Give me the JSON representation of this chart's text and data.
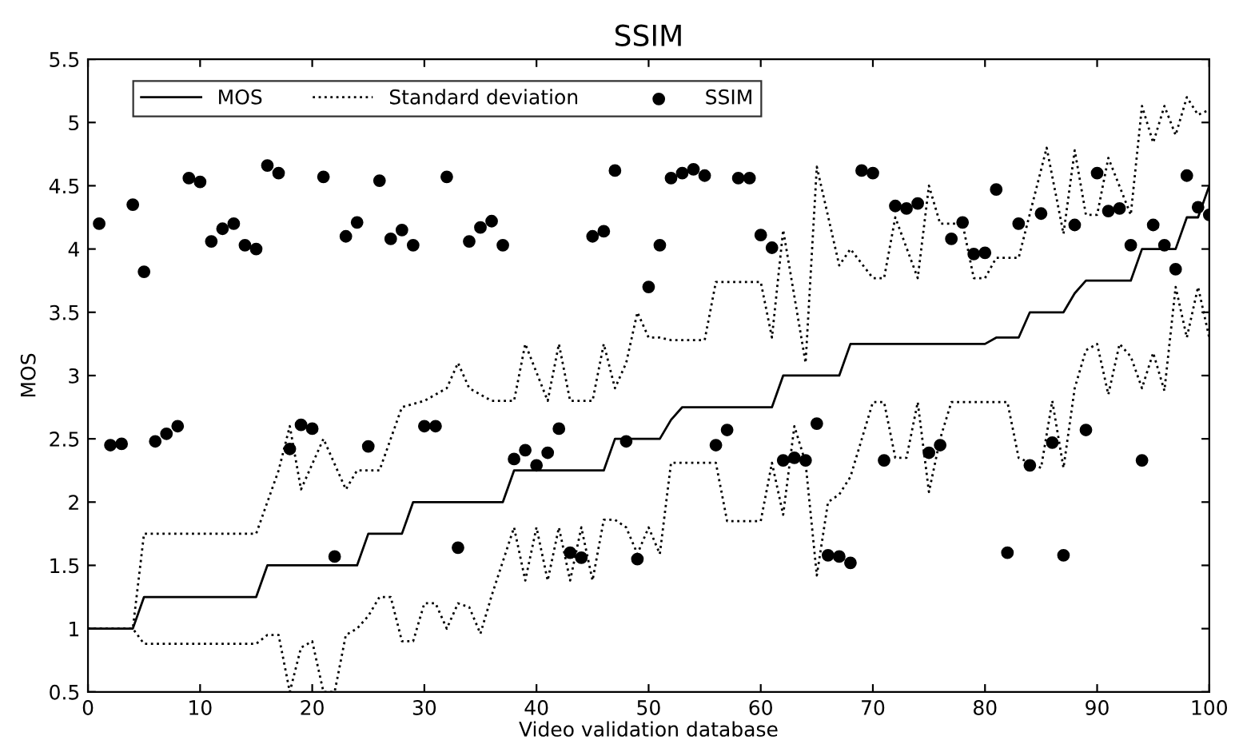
{
  "chart_data": {
    "type": "line",
    "title": "SSIM",
    "xlabel": "Video validation database",
    "ylabel": "MOS",
    "xlim": [
      0,
      100
    ],
    "xticks": [
      0,
      10,
      20,
      30,
      40,
      50,
      60,
      70,
      80,
      90,
      100
    ],
    "ylim": [
      0.5,
      5.5
    ],
    "yticks": [
      0.5,
      1,
      1.5,
      2,
      2.5,
      3,
      3.5,
      4,
      4.5,
      5,
      5.5
    ],
    "grid": false,
    "legend": "top left",
    "series": [
      {
        "name": "MOS",
        "color": "#000000",
        "line_style": "solid",
        "marker": "none",
        "x": [
          0,
          4,
          5,
          15,
          16,
          24,
          25,
          28,
          29,
          37,
          38,
          46,
          47,
          50,
          51,
          52,
          53,
          61,
          62,
          67,
          68,
          80,
          81,
          82,
          83,
          84,
          87,
          88,
          89,
          93,
          94,
          97,
          98,
          99,
          100
        ],
        "values": [
          1,
          1,
          1.25,
          1.25,
          1.5,
          1.5,
          1.75,
          1.75,
          2,
          2,
          2.25,
          2.25,
          2.5,
          2.5,
          2.5,
          2.65,
          2.75,
          2.75,
          3,
          3,
          3.25,
          3.25,
          3.3,
          3.3,
          3.3,
          3.5,
          3.5,
          3.65,
          3.75,
          3.75,
          4,
          4,
          4.25,
          4.25,
          4.5
        ]
      },
      {
        "name": "Standard deviation",
        "color": "#000000",
        "line_style": "dotted",
        "marker": "none",
        "x": [
          0,
          4,
          5,
          15,
          16,
          17,
          18,
          19,
          21,
          23,
          24,
          26,
          27,
          28,
          30,
          32,
          33,
          34,
          36,
          38,
          39,
          41,
          42,
          43,
          44,
          45,
          46,
          47,
          48,
          49,
          50,
          51,
          52,
          55,
          56,
          60,
          61,
          62,
          64,
          65,
          67,
          68,
          70,
          71,
          72,
          74,
          75,
          76,
          78,
          79,
          80,
          81,
          83,
          85.5,
          87,
          88,
          89,
          90,
          91,
          93,
          94,
          95,
          96,
          97,
          98,
          99,
          100
        ],
        "values": [
          1,
          1,
          1.75,
          1.75,
          2,
          2.25,
          2.6,
          2.1,
          2.5,
          2.1,
          2.25,
          2.25,
          2.5,
          2.75,
          2.8,
          2.9,
          3.1,
          2.9,
          2.8,
          2.8,
          3.25,
          2.8,
          3.25,
          2.8,
          2.8,
          2.8,
          3.25,
          2.9,
          3.1,
          3.5,
          3.3,
          3.3,
          3.28,
          3.28,
          3.74,
          3.74,
          3.3,
          4.15,
          3.1,
          4.65,
          3.87,
          4,
          3.77,
          3.77,
          4.25,
          3.77,
          4.5,
          4.2,
          4.2,
          3.77,
          3.77,
          3.93,
          3.93,
          4.8,
          4.12,
          4.78,
          4.27,
          4.27,
          4.72,
          4.27,
          5.13,
          4.84,
          5.13,
          4.9,
          5.2,
          5.06,
          5.1
        ]
      },
      {
        "color": "#000000",
        "line_style": "dotted",
        "marker": "none",
        "x": [
          0,
          4,
          5,
          15,
          16,
          17,
          18,
          19,
          20,
          21,
          22,
          23,
          24,
          25,
          26,
          27,
          28,
          29,
          30,
          31,
          32,
          33,
          34,
          35,
          36,
          38,
          39,
          40,
          41,
          42,
          43,
          44,
          45,
          46,
          47,
          48,
          49,
          50,
          51,
          52,
          56,
          57,
          60,
          61,
          62,
          63,
          64,
          65,
          66,
          67,
          68,
          70,
          71,
          72,
          73,
          74,
          75,
          76,
          77,
          82,
          83,
          85,
          86,
          87,
          88,
          89,
          90,
          91,
          92,
          93,
          94,
          95,
          96,
          97,
          98,
          99,
          100
        ],
        "values": [
          1,
          1,
          0.88,
          0.88,
          0.95,
          0.95,
          0.5,
          0.85,
          0.9,
          0.5,
          0.5,
          0.95,
          1,
          1.1,
          1.25,
          1.25,
          0.9,
          0.9,
          1.2,
          1.2,
          1,
          1.2,
          1.17,
          0.96,
          1.26,
          1.8,
          1.38,
          1.8,
          1.38,
          1.8,
          1.38,
          1.8,
          1.38,
          1.86,
          1.86,
          1.8,
          1.59,
          1.8,
          1.59,
          2.31,
          2.31,
          1.85,
          1.85,
          2.31,
          1.9,
          2.6,
          2.31,
          1.42,
          2.0,
          2.06,
          2.2,
          2.79,
          2.79,
          2.35,
          2.35,
          2.79,
          2.08,
          2.5,
          2.79,
          2.79,
          2.35,
          2.27,
          2.8,
          2.27,
          2.9,
          3.2,
          3.25,
          2.85,
          3.25,
          3.15,
          2.9,
          3.18,
          2.88,
          3.7,
          3.3,
          3.7,
          3.3
        ]
      },
      {
        "name": "SSIM",
        "type": "scatter",
        "color": "#000000",
        "marker": "circle",
        "x": [
          1,
          2,
          3,
          4,
          5,
          6,
          7,
          8,
          9,
          10,
          11,
          12,
          13,
          14,
          15,
          16,
          17,
          18,
          19,
          20,
          21,
          22,
          23,
          24,
          25,
          26,
          27,
          28,
          29,
          30,
          31,
          32,
          33,
          34,
          35,
          36,
          37,
          38,
          39,
          40,
          41,
          42,
          43,
          44,
          45,
          46,
          47,
          48,
          49,
          50,
          51,
          52,
          53,
          54,
          55,
          56,
          57,
          58,
          59,
          60,
          61,
          62,
          63,
          64,
          65,
          66,
          67,
          68,
          69,
          70,
          71,
          72,
          73,
          74,
          75,
          76,
          77,
          78,
          79,
          80,
          81,
          82,
          83,
          84,
          85,
          86,
          87,
          88,
          89,
          90,
          91,
          92,
          93,
          94,
          95,
          96,
          97,
          98,
          99,
          100
        ],
        "values": [
          4.2,
          2.45,
          2.46,
          4.35,
          3.82,
          2.48,
          2.54,
          2.6,
          4.56,
          4.53,
          4.06,
          4.16,
          4.2,
          4.03,
          4.0,
          4.66,
          4.6,
          2.42,
          2.61,
          2.58,
          4.57,
          1.57,
          4.1,
          4.21,
          2.44,
          4.54,
          4.08,
          4.15,
          4.03,
          2.6,
          2.6,
          4.57,
          1.64,
          4.06,
          4.17,
          4.22,
          4.03,
          2.34,
          2.41,
          2.29,
          2.39,
          2.58,
          1.6,
          1.56,
          4.1,
          4.14,
          4.62,
          2.48,
          1.55,
          3.7,
          4.03,
          4.56,
          4.6,
          4.63,
          4.58,
          2.45,
          2.57,
          4.56,
          4.56,
          4.11,
          4.01,
          2.33,
          2.35,
          2.33,
          2.62,
          1.58,
          1.57,
          1.52,
          4.62,
          4.6,
          2.33,
          4.34,
          4.32,
          4.36,
          2.39,
          2.45,
          4.08,
          4.21,
          3.96,
          3.97,
          4.47,
          1.6,
          4.2,
          2.29,
          4.28,
          2.47,
          1.58,
          4.19,
          2.57,
          4.6,
          4.3,
          4.32,
          4.03,
          2.33,
          4.19,
          4.03,
          3.84,
          4.58,
          4.33,
          4.27
        ]
      }
    ]
  }
}
